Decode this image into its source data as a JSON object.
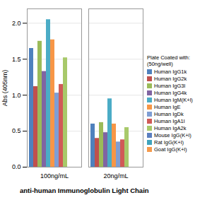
{
  "chart_data": {
    "type": "bar",
    "title": "anti-human Immunoglobulin Light Chain",
    "y_label": "Abs (405nm)",
    "legend_title": [
      "Plate Coated with:",
      "(50ng/well)"
    ],
    "legend": "right",
    "grid": true,
    "categories": [
      "100ng/mL",
      "20ng/mL"
    ],
    "ylim": [
      0,
      2.2
    ],
    "yticks": [
      {
        "value": 0,
        "label": "0.0"
      },
      {
        "value": 0.5,
        "label": "0.5"
      },
      {
        "value": 1,
        "label": "1.0"
      },
      {
        "value": 1.5,
        "label": "1.5"
      },
      {
        "value": 2,
        "label": "2.0"
      }
    ],
    "series": [
      {
        "name": "Human IgG1k",
        "color": "#4f81bd",
        "values": [
          1.65,
          0.6
        ]
      },
      {
        "name": "Human IgG2k",
        "color": "#c0504d",
        "values": [
          1.12,
          0.4
        ]
      },
      {
        "name": "Human IgG3l",
        "color": "#9bbb59",
        "values": [
          1.75,
          0.62
        ]
      },
      {
        "name": "Human IgG4k",
        "color": "#8064a2",
        "values": [
          1.33,
          0.48
        ]
      },
      {
        "name": "Human IgM(K+l)",
        "color": "#4bacc6",
        "values": [
          2.05,
          0.95
        ]
      },
      {
        "name": "Human IgE",
        "color": "#f79646",
        "values": [
          1.77,
          0.6
        ]
      },
      {
        "name": "Human IgDk",
        "color": "#7f9ed4",
        "values": [
          1.03,
          0.35
        ]
      },
      {
        "name": "Human IgA1l",
        "color": "#d05a57",
        "values": [
          1.15,
          0.38
        ]
      },
      {
        "name": "Human IgA2k",
        "color": "#a8c96a",
        "values": [
          1.52,
          0.55
        ]
      },
      {
        "name": "Mouse IgG(K+l)",
        "color": "#5b7fc0",
        "values": [
          0,
          0
        ]
      },
      {
        "name": "Rat IgG(K+l)",
        "color": "#3fa3bd",
        "values": [
          0,
          0
        ]
      },
      {
        "name": "Goat IgG(K+l)",
        "color": "#f59a4c",
        "values": [
          0,
          0
        ]
      }
    ]
  }
}
